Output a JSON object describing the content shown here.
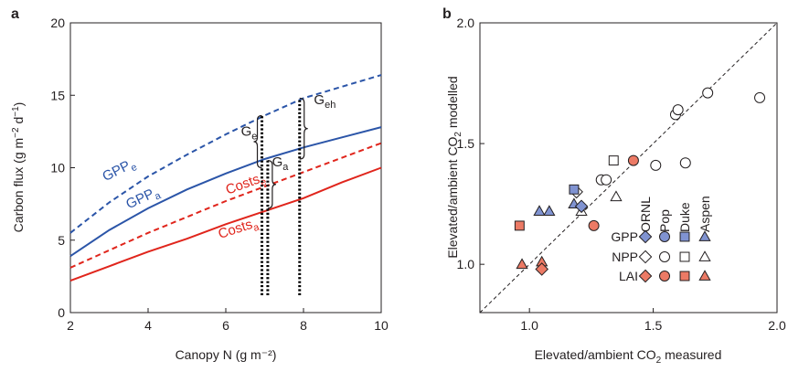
{
  "chart_data": [
    {
      "panel_label": "a",
      "type": "line",
      "xlabel": "Canopy N (g m⁻²)",
      "ylabel_parts": [
        "Carbon flux (g m",
        "−2",
        " d",
        "−1",
        ")"
      ],
      "xlim": [
        2,
        10
      ],
      "ylim": [
        0,
        20
      ],
      "xticks": [
        2,
        4,
        6,
        8,
        10
      ],
      "yticks": [
        0,
        5,
        10,
        15,
        20
      ],
      "grid": false,
      "series": [
        {
          "name": "GPP",
          "sub": "e",
          "color": "#2b55a8",
          "dash": true,
          "label_at": [
            2.9,
            9.05
          ],
          "label_rot": -27,
          "x": [
            2,
            3,
            4,
            5,
            6,
            7,
            8,
            9,
            10
          ],
          "y": [
            5.5,
            7.6,
            9.4,
            10.9,
            12.3,
            13.6,
            14.8,
            15.6,
            16.4
          ]
        },
        {
          "name": "GPP",
          "sub": "a",
          "color": "#2b55a8",
          "dash": false,
          "label_at": [
            3.5,
            7.15
          ],
          "label_rot": -25,
          "x": [
            2,
            3,
            4,
            5,
            6,
            7,
            8,
            9,
            10
          ],
          "y": [
            3.9,
            5.7,
            7.2,
            8.5,
            9.6,
            10.6,
            11.4,
            12.1,
            12.8
          ]
        },
        {
          "name": "Costs",
          "sub": "e",
          "color": "#e0251c",
          "dash": true,
          "label_at": [
            6.05,
            8.15
          ],
          "label_rot": -20,
          "x": [
            2,
            3,
            4,
            5,
            6,
            7,
            8,
            9,
            10
          ],
          "y": [
            3.1,
            4.3,
            5.5,
            6.6,
            7.7,
            8.7,
            9.7,
            10.7,
            11.7
          ]
        },
        {
          "name": "Costs",
          "sub": "a",
          "color": "#e0251c",
          "dash": false,
          "label_at": [
            5.85,
            5.1
          ],
          "label_rot": -18,
          "x": [
            2,
            3,
            4,
            5,
            6,
            7,
            8,
            9,
            10
          ],
          "y": [
            2.2,
            3.2,
            4.2,
            5.1,
            6.1,
            7.0,
            7.9,
            9.0,
            10.0
          ]
        }
      ],
      "annotations": [
        {
          "name": "G",
          "sub": "e",
          "x": 6.6,
          "y": 12.2
        },
        {
          "name": "G",
          "sub": "a",
          "x": 7.4,
          "y": 10.1
        },
        {
          "name": "G",
          "sub": "eh",
          "x": 8.55,
          "y": 14.4
        }
      ],
      "vlines": [
        {
          "x": 6.93,
          "y0": 1.2,
          "y1": 13.6
        },
        {
          "x": 7.08,
          "y0": 1.2,
          "y1": 10.5
        },
        {
          "x": 7.9,
          "y0": 1.2,
          "y1": 14.8
        }
      ],
      "braces": [
        {
          "x": 6.93,
          "y0": 10.0,
          "y1": 13.6,
          "side": "left"
        },
        {
          "x": 7.08,
          "y0": 7.2,
          "y1": 10.5,
          "side": "right"
        },
        {
          "x": 7.9,
          "y0": 10.6,
          "y1": 14.8,
          "side": "right"
        }
      ]
    },
    {
      "panel_label": "b",
      "type": "scatter",
      "xlabel_parts": [
        "Elevated/ambient CO",
        "2",
        " measured"
      ],
      "ylabel_parts": [
        "Elevated/ambient CO",
        "2",
        " modelled"
      ],
      "xlim": [
        0.8,
        2.0
      ],
      "ylim": [
        0.8,
        2.0
      ],
      "xticks": [
        1.0,
        1.5,
        2.0
      ],
      "yticks": [
        1.0,
        1.5,
        2.0
      ],
      "grid": false,
      "one_to_one_line": true,
      "colors": {
        "GPP": "#8093d1",
        "NPP": "#ffffff",
        "LAI": "#ec7a65"
      },
      "legend": {
        "position": "lower-right",
        "rows": [
          "GPP",
          "NPP",
          "LAI"
        ],
        "columns": [
          "ORNL",
          "Pop",
          "Duke",
          "Aspen"
        ],
        "column_markers": [
          "diamond",
          "circle",
          "square",
          "triangle"
        ]
      },
      "points": [
        {
          "type": "NPP",
          "shape": "circle",
          "x": 1.29,
          "y": 1.35
        },
        {
          "type": "NPP",
          "shape": "circle",
          "x": 1.31,
          "y": 1.35
        },
        {
          "type": "NPP",
          "shape": "circle",
          "x": 1.51,
          "y": 1.41
        },
        {
          "type": "NPP",
          "shape": "circle",
          "x": 1.59,
          "y": 1.62
        },
        {
          "type": "NPP",
          "shape": "circle",
          "x": 1.6,
          "y": 1.64
        },
        {
          "type": "NPP",
          "shape": "circle",
          "x": 1.63,
          "y": 1.42
        },
        {
          "type": "NPP",
          "shape": "circle",
          "x": 1.72,
          "y": 1.71
        },
        {
          "type": "NPP",
          "shape": "circle",
          "x": 1.93,
          "y": 1.69
        },
        {
          "type": "NPP",
          "shape": "square",
          "x": 1.34,
          "y": 1.43
        },
        {
          "type": "NPP",
          "shape": "triangle",
          "x": 1.35,
          "y": 1.28
        },
        {
          "type": "NPP",
          "shape": "triangle",
          "x": 1.21,
          "y": 1.22
        },
        {
          "type": "NPP",
          "shape": "diamond",
          "x": 1.19,
          "y": 1.3
        },
        {
          "type": "GPP",
          "shape": "square",
          "x": 1.18,
          "y": 1.31
        },
        {
          "type": "GPP",
          "shape": "triangle",
          "x": 1.04,
          "y": 1.22
        },
        {
          "type": "GPP",
          "shape": "triangle",
          "x": 1.08,
          "y": 1.22
        },
        {
          "type": "GPP",
          "shape": "triangle",
          "x": 1.18,
          "y": 1.25
        },
        {
          "type": "GPP",
          "shape": "diamond",
          "x": 1.21,
          "y": 1.24
        },
        {
          "type": "LAI",
          "shape": "square",
          "x": 0.96,
          "y": 1.16
        },
        {
          "type": "LAI",
          "shape": "circle",
          "x": 1.26,
          "y": 1.16
        },
        {
          "type": "LAI",
          "shape": "circle",
          "x": 1.42,
          "y": 1.43
        },
        {
          "type": "LAI",
          "shape": "triangle",
          "x": 0.97,
          "y": 1.0
        },
        {
          "type": "LAI",
          "shape": "triangle",
          "x": 1.05,
          "y": 1.01
        },
        {
          "type": "LAI",
          "shape": "diamond",
          "x": 1.05,
          "y": 0.98
        }
      ]
    }
  ]
}
